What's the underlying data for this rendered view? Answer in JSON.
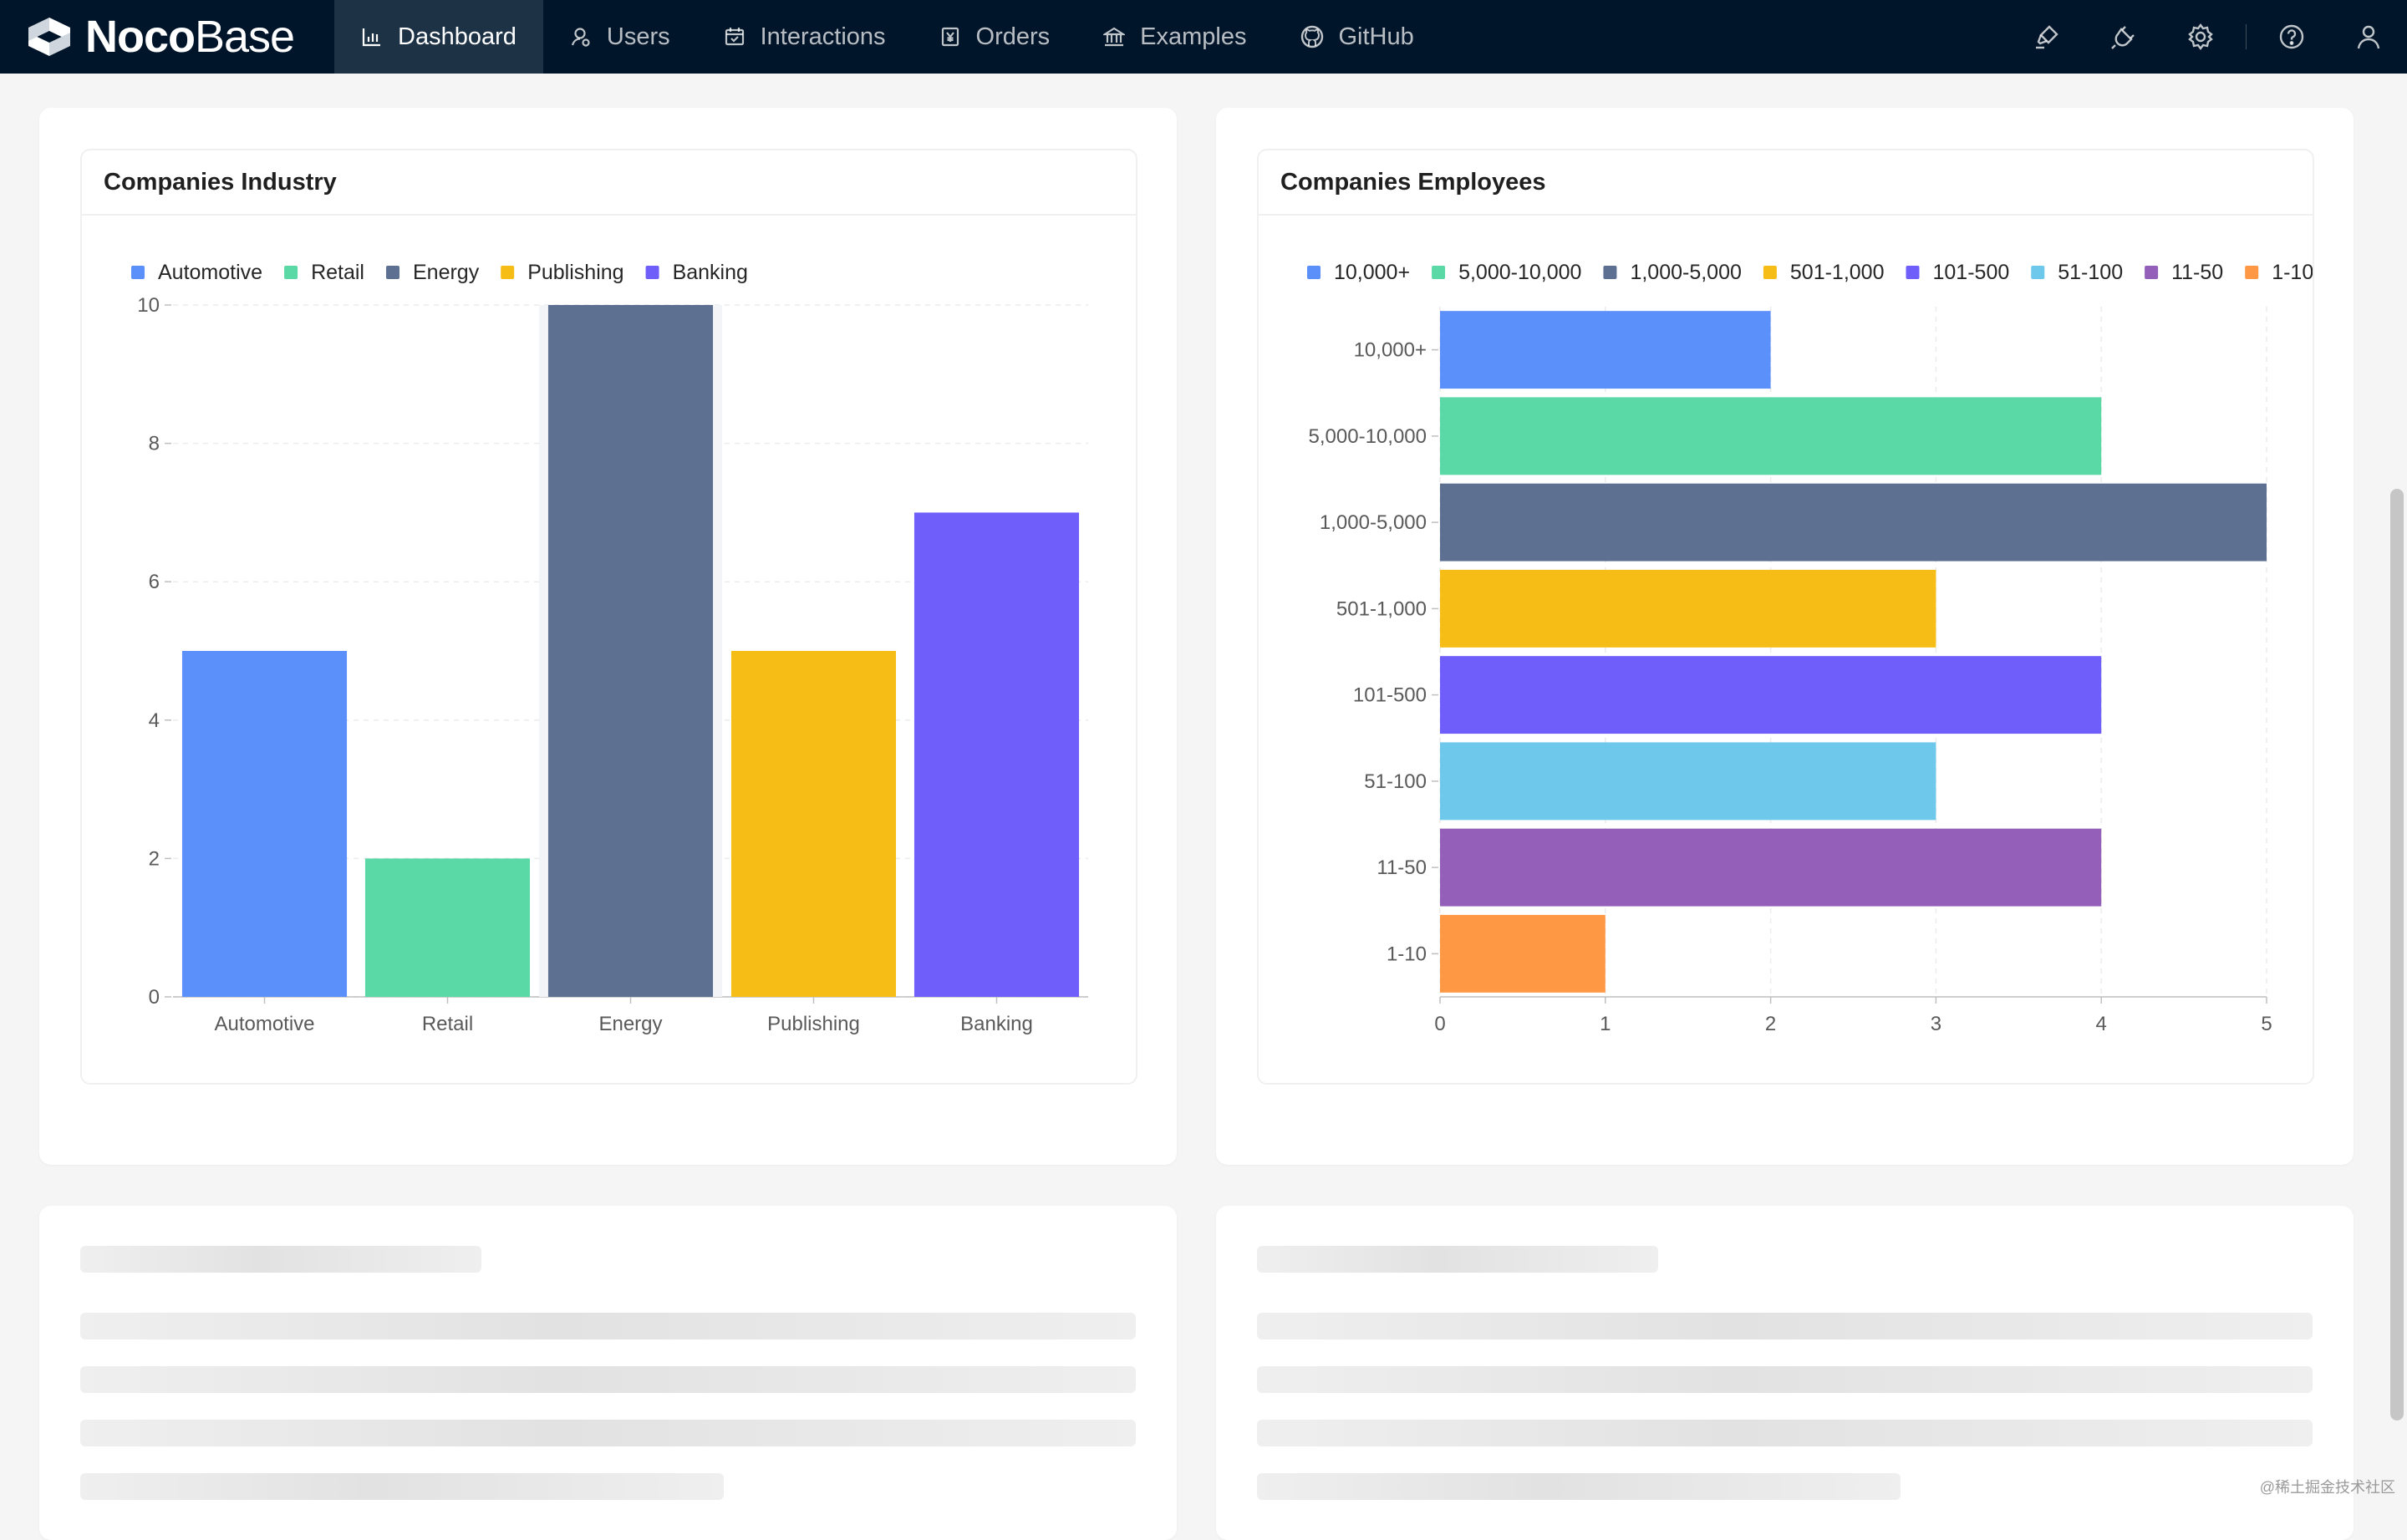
{
  "header": {
    "logo_bold": "Noco",
    "logo_light": "Base",
    "nav": [
      {
        "label": "Dashboard",
        "icon": "bar-chart-icon",
        "active": true
      },
      {
        "label": "Users",
        "icon": "user-icon",
        "active": false
      },
      {
        "label": "Interactions",
        "icon": "calendar-icon",
        "active": false
      },
      {
        "label": "Orders",
        "icon": "yen-icon",
        "active": false
      },
      {
        "label": "Examples",
        "icon": "bank-icon",
        "active": false
      },
      {
        "label": "GitHub",
        "icon": "github-icon",
        "active": false
      }
    ],
    "right_icons": [
      "highlight-icon",
      "plugin-icon",
      "settings-icon",
      "help-icon",
      "account-icon"
    ]
  },
  "cards": {
    "industry_title": "Companies Industry",
    "employees_title": "Companies Employees"
  },
  "chart_data": [
    {
      "type": "bar",
      "title": "Companies Industry",
      "categories": [
        "Automotive",
        "Retail",
        "Energy",
        "Publishing",
        "Banking"
      ],
      "values": [
        5,
        2,
        10,
        5,
        7
      ],
      "colors": [
        "#5b8ff9",
        "#5ad8a6",
        "#5d7092",
        "#f6bd16",
        "#6f5ef9"
      ],
      "legend": [
        "Automotive",
        "Retail",
        "Energy",
        "Publishing",
        "Banking"
      ],
      "legend_position": "top-left",
      "ylim": [
        0,
        10
      ],
      "yticks": [
        "0",
        "2",
        "4",
        "6",
        "8",
        "10"
      ],
      "grid": true
    },
    {
      "type": "bar",
      "orientation": "horizontal",
      "title": "Companies Employees",
      "categories": [
        "10,000+",
        "5,000-10,000",
        "1,000-5,000",
        "501-1,000",
        "101-500",
        "51-100",
        "11-50",
        "1-10"
      ],
      "values": [
        2,
        4,
        5,
        3,
        4,
        3,
        4,
        1
      ],
      "colors": [
        "#5b8ff9",
        "#5ad8a6",
        "#5d7092",
        "#f6bd16",
        "#6f5ef9",
        "#6dc8ec",
        "#945fb9",
        "#ff9845"
      ],
      "legend": [
        "10,000+",
        "5,000-10,000",
        "1,000-5,000",
        "501-1,000",
        "101-500",
        "51-100",
        "11-50",
        "1-10"
      ],
      "legend_position": "top-left",
      "xlim": [
        0,
        5
      ],
      "xticks": [
        "0",
        "1",
        "2",
        "3",
        "4",
        "5"
      ],
      "grid": true
    }
  ],
  "watermark": "@稀土掘金技术社区"
}
